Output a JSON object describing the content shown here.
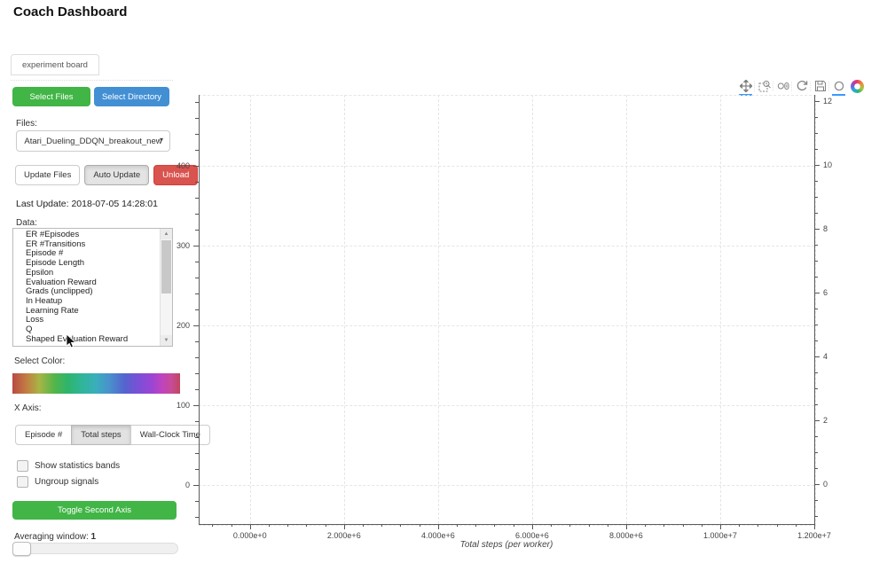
{
  "page": {
    "title": "Coach Dashboard"
  },
  "tabs": [
    {
      "label": "experiment board"
    }
  ],
  "icons": {
    "dropdown_caret": "▾",
    "scroll_up": "▲",
    "scroll_down": "▼"
  },
  "colors": {
    "accent_green": "#41b546",
    "accent_blue": "#428fd4",
    "accent_red": "#d9534f",
    "pressed_gray": "#e4e4e4",
    "active_tool_underline": "#3b99fc"
  },
  "sidebar": {
    "select_files": "Select Files",
    "select_directory": "Select Directory",
    "files_label": "Files:",
    "files_selected": "Atari_Dueling_DDQN_breakout_new",
    "update_files": "Update Files",
    "auto_update": "Auto Update",
    "unload": "Unload",
    "last_update": "Last Update: 2018-07-05 14:28:01",
    "data_label": "Data:",
    "data_items": [
      "ER #Episodes",
      "ER #Transitions",
      "Episode #",
      "Episode Length",
      "Epsilon",
      "Evaluation Reward",
      "Grads (unclipped)",
      "In Heatup",
      "Learning Rate",
      "Loss",
      "Q",
      "Shaped Evaluation Reward"
    ],
    "select_color_label": "Select Color:",
    "x_axis_label": "X Axis:",
    "x_axis_options": [
      "Episode #",
      "Total steps",
      "Wall-Clock Time"
    ],
    "x_axis_selected": "Total steps",
    "checkboxes": [
      {
        "label": "Show statistics bands",
        "checked": false
      },
      {
        "label": "Ungroup signals",
        "checked": false
      }
    ],
    "toggle_second_axis": "Toggle Second Axis",
    "averaging_label": "Averaging window:",
    "averaging_value": "1"
  },
  "plot": {
    "toolbar": [
      {
        "name": "pan",
        "active": true
      },
      {
        "name": "box-zoom",
        "active": false
      },
      {
        "name": "wheel-zoom",
        "active": false
      },
      {
        "name": "reset",
        "active": false
      },
      {
        "name": "save",
        "active": false
      },
      {
        "name": "hover",
        "active": true
      },
      {
        "name": "bokeh-logo",
        "active": false
      }
    ]
  },
  "chart_data": {
    "type": "line",
    "title": "",
    "series": [],
    "xlabel": "Total steps (per worker)",
    "x_ticks": [
      {
        "value": 0,
        "label": "0.000e+0"
      },
      {
        "value": 2000000,
        "label": "2.000e+6"
      },
      {
        "value": 4000000,
        "label": "4.000e+6"
      },
      {
        "value": 6000000,
        "label": "6.000e+6"
      },
      {
        "value": 8000000,
        "label": "8.000e+6"
      },
      {
        "value": 10000000,
        "label": "1.000e+7"
      },
      {
        "value": 12000000,
        "label": "1.200e+7"
      }
    ],
    "x_minor_step": 400000,
    "xlim": [
      -1090000,
      12000000
    ],
    "y_left_ticks": [
      0,
      100,
      200,
      300,
      400
    ],
    "y_left_minor_step": 20,
    "ylim_left": [
      -49,
      489
    ],
    "y_right_ticks": [
      0,
      2,
      4,
      6,
      8,
      10,
      12
    ],
    "y_right_minor_step": 0.5,
    "ylim_right": [
      -1.25,
      12.2
    ],
    "grid": true
  }
}
